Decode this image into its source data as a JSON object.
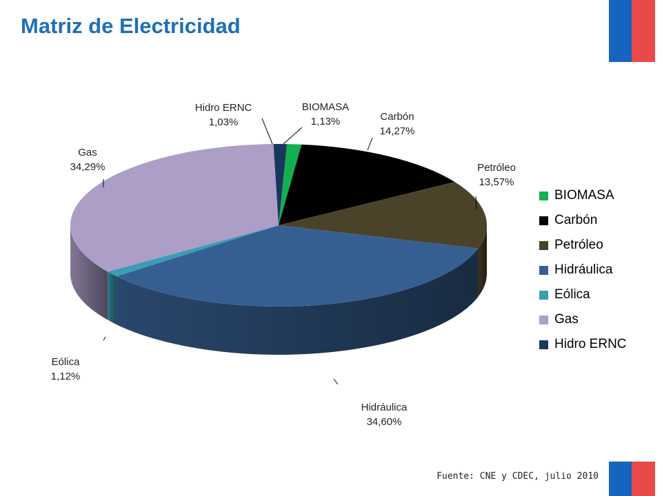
{
  "title": "Matriz de Electricidad",
  "source": "Fuente: CNE y CDEC, julio 2010",
  "colors": {
    "title": "#1f6fb5",
    "flag_blue": "#1565c0",
    "flag_red": "#e84a4a"
  },
  "chart_data": {
    "type": "pie",
    "style": "3d",
    "legend_position": "right",
    "slices": [
      {
        "name": "BIOMASA",
        "label": "BIOMASA",
        "pct": "1,13%",
        "value": 1.13,
        "color": "#12b04f"
      },
      {
        "name": "Carbón",
        "label": "Carbón",
        "pct": "14,27%",
        "value": 14.27,
        "color": "#000000"
      },
      {
        "name": "Petróleo",
        "label": "Petróleo",
        "pct": "13,57%",
        "value": 13.57,
        "color": "#4a432a"
      },
      {
        "name": "Hidráulica",
        "label": "Hidráulica",
        "pct": "34,60%",
        "value": 34.6,
        "color": "#365f91"
      },
      {
        "name": "Eólica",
        "label": "Eólica",
        "pct": "1,12%",
        "value": 1.12,
        "color": "#3a9db5"
      },
      {
        "name": "Gas",
        "label": "Gas",
        "pct": "34,29%",
        "value": 34.29,
        "color": "#ad9ec7"
      },
      {
        "name": "Hidro ERNC",
        "label": "Hidro ERNC",
        "pct": "1,03%",
        "value": 1.03,
        "color": "#1b365d"
      }
    ]
  }
}
